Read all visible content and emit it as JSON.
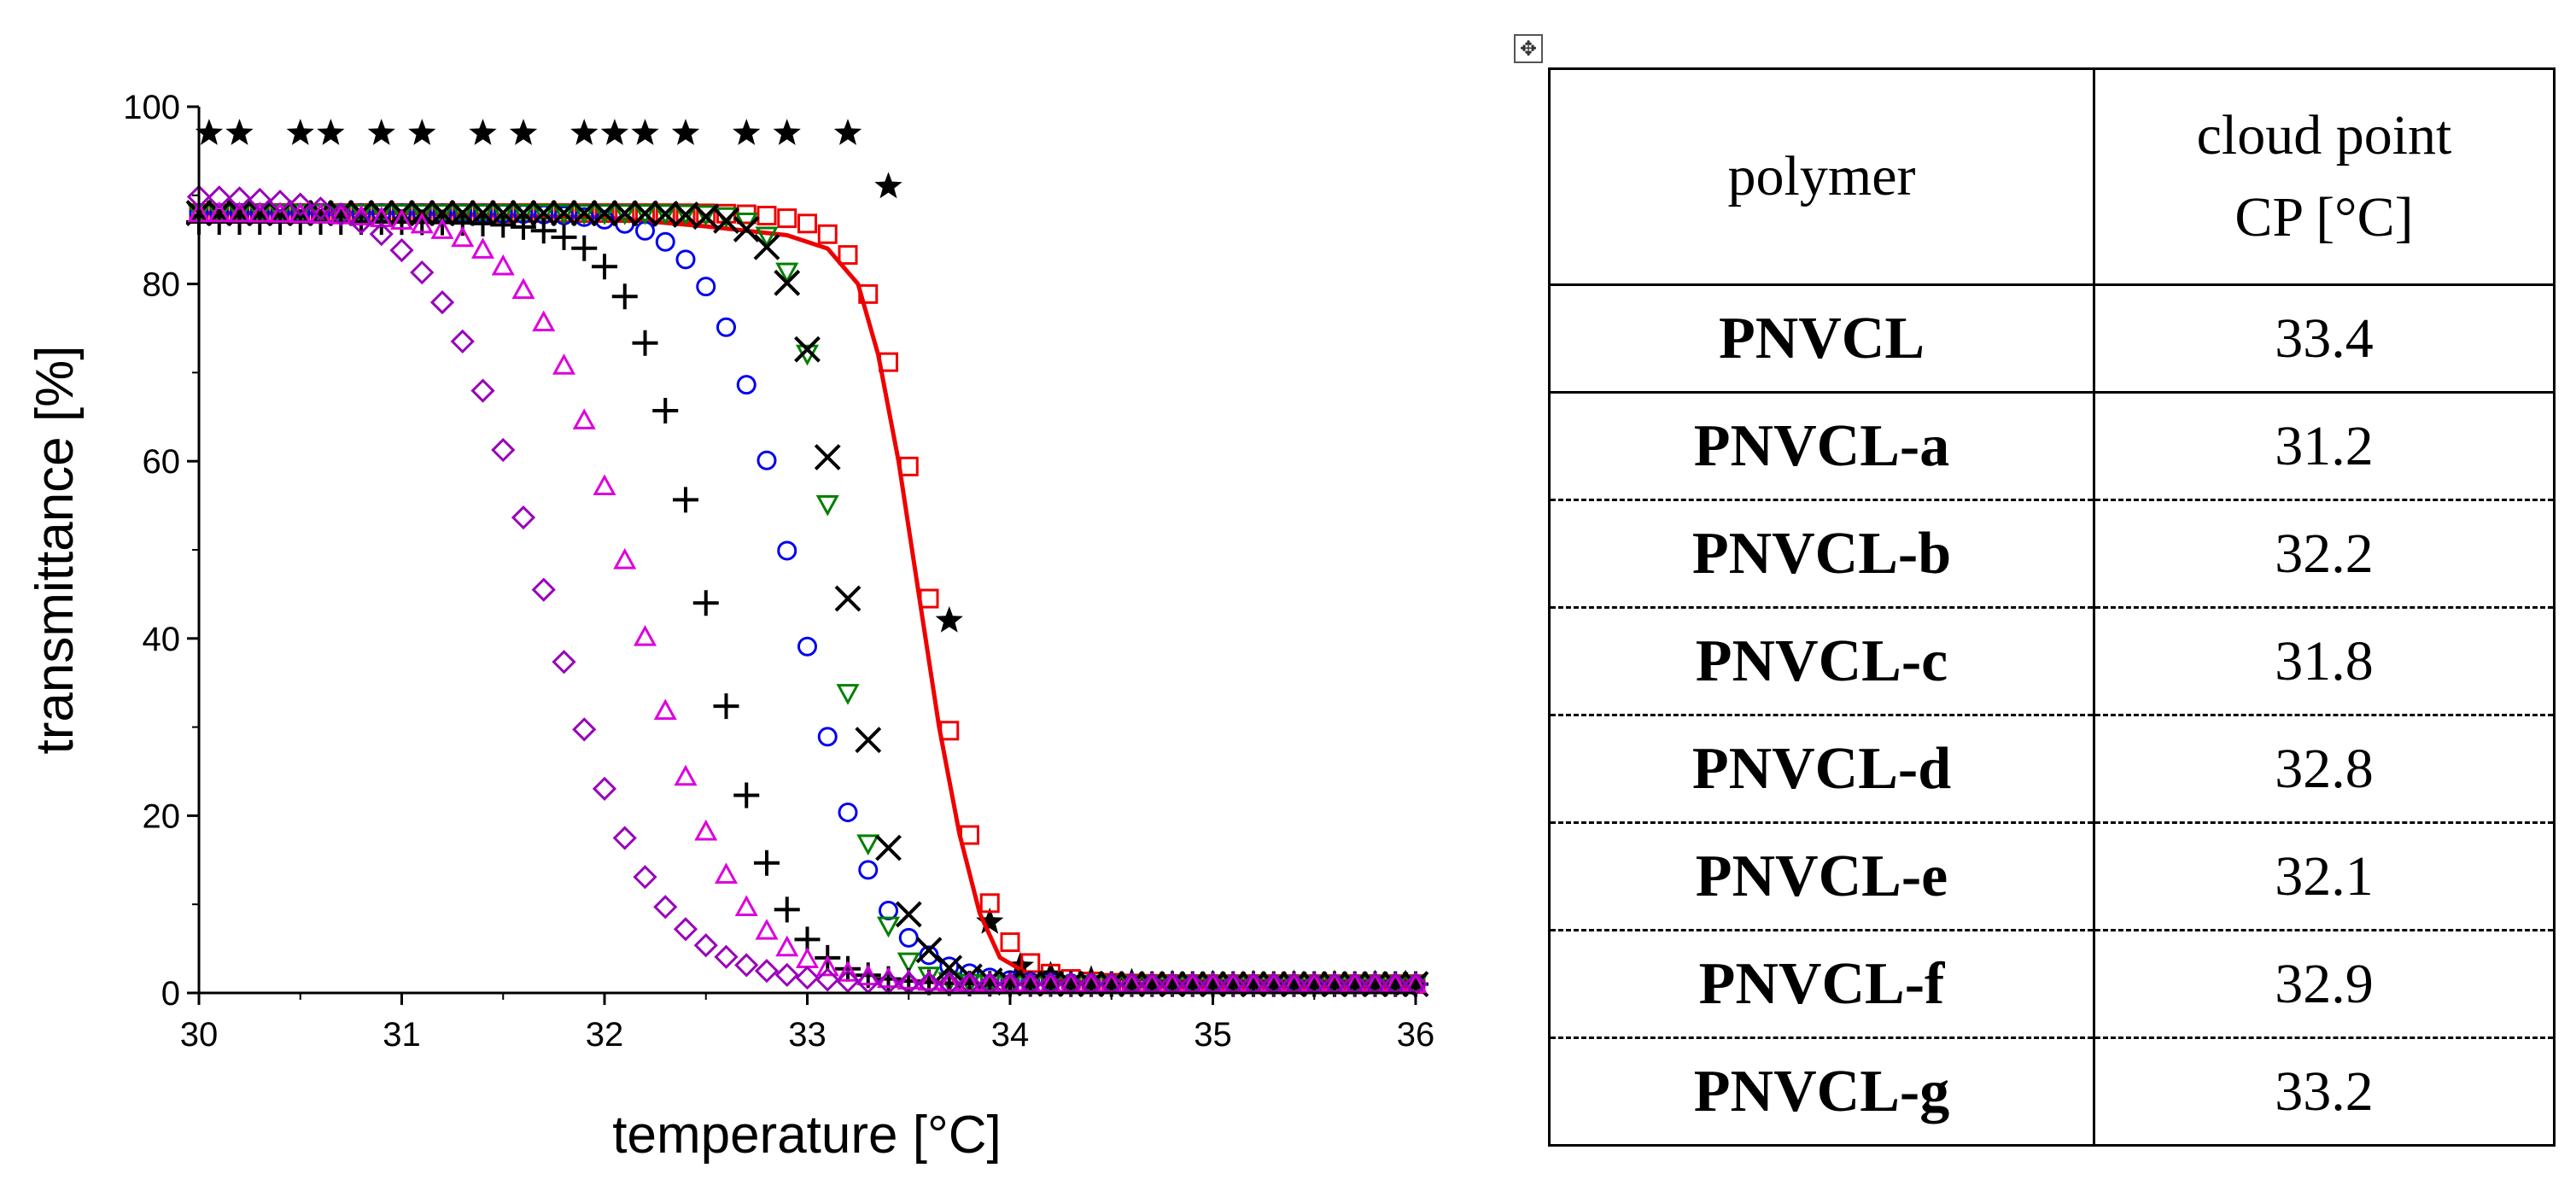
{
  "chart_data": {
    "type": "scatter",
    "title": "",
    "xlabel": "temperature [°C]",
    "ylabel": "transmittance [%]",
    "xlim": [
      30,
      36
    ],
    "ylim": [
      0,
      100
    ],
    "xticks": [
      30,
      31,
      32,
      33,
      34,
      35,
      36
    ],
    "yticks": [
      0,
      20,
      40,
      60,
      80,
      100
    ],
    "series": [
      {
        "name": "star (black)",
        "marker": "star",
        "color": "#000000",
        "model": {
          "type": "points"
        },
        "points": [
          [
            30.05,
            97
          ],
          [
            30.2,
            97
          ],
          [
            30.5,
            97
          ],
          [
            30.65,
            97
          ],
          [
            30.9,
            97
          ],
          [
            31.1,
            97
          ],
          [
            31.4,
            97
          ],
          [
            31.6,
            97
          ],
          [
            31.9,
            97
          ],
          [
            32.05,
            97
          ],
          [
            32.2,
            97
          ],
          [
            32.4,
            97
          ],
          [
            32.7,
            97
          ],
          [
            32.9,
            97
          ],
          [
            33.2,
            97
          ],
          [
            33.4,
            91
          ],
          [
            33.7,
            42
          ],
          [
            33.9,
            8
          ],
          [
            34.05,
            3
          ],
          [
            34.2,
            2
          ],
          [
            34.4,
            1.5
          ],
          [
            34.6,
            1.2
          ],
          [
            34.8,
            1
          ],
          [
            35.0,
            1
          ],
          [
            35.2,
            1
          ],
          [
            35.4,
            1
          ],
          [
            35.6,
            1
          ],
          [
            35.8,
            1
          ],
          [
            35.95,
            1
          ]
        ]
      },
      {
        "name": "line (red)",
        "marker": "line",
        "color": "#ee0000",
        "model": {
          "type": "line"
        },
        "points": [
          [
            30,
            88
          ],
          [
            31,
            88
          ],
          [
            32,
            87.5
          ],
          [
            32.5,
            86.5
          ],
          [
            32.9,
            85.5
          ],
          [
            33.1,
            84
          ],
          [
            33.25,
            80
          ],
          [
            33.35,
            72
          ],
          [
            33.45,
            60
          ],
          [
            33.55,
            45
          ],
          [
            33.65,
            30
          ],
          [
            33.75,
            18
          ],
          [
            33.85,
            9
          ],
          [
            33.95,
            4
          ],
          [
            34.1,
            2
          ],
          [
            34.4,
            1
          ],
          [
            35,
            0.5
          ],
          [
            36,
            0.5
          ]
        ]
      },
      {
        "name": "square (red)",
        "marker": "square",
        "color": "#ee0000",
        "model": {
          "type": "sigmoid",
          "tm": 33.6,
          "k": 0.14,
          "top": 88,
          "bottom": 1,
          "x0": 30,
          "x1": 36,
          "step": 0.1
        }
      },
      {
        "name": "circle (blue)",
        "marker": "circle",
        "color": "#0000ee",
        "model": {
          "type": "sigmoid",
          "tm": 32.95,
          "k": 0.2,
          "top": 88,
          "bottom": 1,
          "x0": 30,
          "x1": 36,
          "step": 0.1
        }
      },
      {
        "name": "triangle-down (green)",
        "marker": "triangle-down",
        "color": "#008000",
        "model": {
          "type": "sigmoid",
          "tm": 33.15,
          "k": 0.1,
          "top": 88,
          "bottom": 1,
          "x0": 30,
          "x1": 36,
          "step": 0.1
        }
      },
      {
        "name": "x-cross (black)",
        "marker": "x",
        "color": "#000000",
        "model": {
          "type": "sigmoid",
          "tm": 33.2,
          "k": 0.13,
          "top": 88,
          "bottom": 1,
          "x0": 30,
          "x1": 36,
          "step": 0.1
        }
      },
      {
        "name": "plus (black)",
        "marker": "plus",
        "color": "#000000",
        "model": {
          "type": "sigmoid",
          "tm": 32.5,
          "k": 0.18,
          "top": 87,
          "bottom": 1,
          "x0": 30,
          "x1": 36,
          "step": 0.1
        }
      },
      {
        "name": "triangle-up (magenta)",
        "marker": "triangle-up",
        "color": "#dd00dd",
        "model": {
          "type": "sigmoid",
          "tm": 32.15,
          "k": 0.25,
          "top": 88,
          "bottom": 1,
          "x0": 30,
          "x1": 36,
          "step": 0.1
        }
      },
      {
        "name": "diamond (purple)",
        "marker": "diamond",
        "color": "#9900bb",
        "model": {
          "type": "sigmoid",
          "tm": 31.7,
          "k": 0.27,
          "top": 90,
          "bottom": 1,
          "x0": 30,
          "x1": 36,
          "step": 0.1
        }
      }
    ]
  },
  "table": {
    "header": {
      "col1": "polymer",
      "col2_line1": "cloud point",
      "col2_line2": "CP [°C]"
    },
    "rows": [
      {
        "name": "PNVCL",
        "cp": "33.4"
      },
      {
        "name": "PNVCL-a",
        "cp": "31.2"
      },
      {
        "name": "PNVCL-b",
        "cp": "32.2"
      },
      {
        "name": "PNVCL-c",
        "cp": "31.8"
      },
      {
        "name": "PNVCL-d",
        "cp": "32.8"
      },
      {
        "name": "PNVCL-e",
        "cp": "32.1"
      },
      {
        "name": "PNVCL-f",
        "cp": "32.9"
      },
      {
        "name": "PNVCL-g",
        "cp": "33.2"
      }
    ]
  },
  "table_move_icon": "move-handle-icon"
}
